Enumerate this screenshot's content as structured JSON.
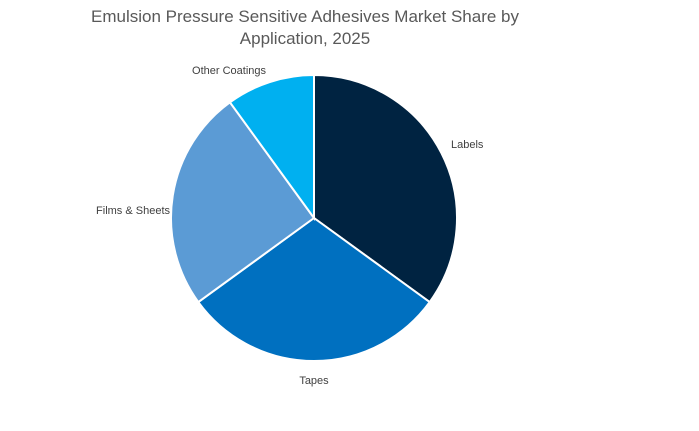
{
  "chart_data": {
    "type": "pie",
    "title_lines": [
      "Emulsion Pressure Sensitive Adhesives Market Share by",
      "Application, 2025"
    ],
    "categories": [
      "Labels",
      "Tapes",
      "Films & Sheets",
      "Other Coatings"
    ],
    "values": [
      35,
      30,
      25,
      10
    ],
    "colors": [
      "#002341",
      "#0070c0",
      "#5b9bd5",
      "#00b0f0"
    ],
    "legend": "none"
  }
}
